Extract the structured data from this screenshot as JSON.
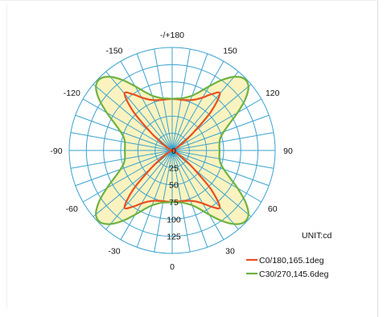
{
  "chart_data": {
    "type": "polar",
    "unit_label": "UNIT:cd",
    "angle_labels": [
      {
        "text": "-/+180",
        "angle": 180
      },
      {
        "text": "150",
        "angle": 150
      },
      {
        "text": "-150",
        "angle": -150
      },
      {
        "text": "120",
        "angle": 120
      },
      {
        "text": "-120",
        "angle": -120
      },
      {
        "text": "90",
        "angle": 90
      },
      {
        "text": "-90",
        "angle": -90
      },
      {
        "text": "60",
        "angle": 60
      },
      {
        "text": "-60",
        "angle": -60
      },
      {
        "text": "30",
        "angle": 30
      },
      {
        "text": "-30",
        "angle": -30
      },
      {
        "text": "0",
        "angle": 0
      }
    ],
    "radial_labels": [
      "0",
      "25",
      "50",
      "75",
      "100",
      "125"
    ],
    "radial_max": 150,
    "series": [
      {
        "name": "C0/180,165.1deg",
        "color": "#e8501f",
        "angles": [
          0,
          5,
          10,
          15,
          20,
          25,
          30,
          35,
          40,
          45,
          50,
          55,
          60,
          65,
          70,
          80,
          90,
          100,
          110,
          115,
          120,
          125,
          130,
          135,
          140,
          145,
          150,
          155,
          160,
          165,
          170,
          175,
          180
        ],
        "values": [
          75,
          75,
          75,
          76,
          78,
          82,
          89,
          100,
          108,
          80,
          40,
          18,
          8,
          4,
          2,
          0,
          0,
          0,
          2,
          4,
          8,
          18,
          40,
          80,
          108,
          100,
          89,
          82,
          78,
          76,
          75,
          75,
          75
        ]
      },
      {
        "name": "C30/270,145.6deg",
        "color": "#6db33f",
        "angles": [
          0,
          5,
          10,
          15,
          20,
          25,
          30,
          35,
          40,
          45,
          50,
          55,
          60,
          65,
          70,
          75,
          80,
          85,
          90,
          95,
          100,
          105,
          110,
          115,
          120,
          125,
          130,
          135,
          140,
          145,
          150,
          155,
          160,
          165,
          170,
          175,
          180
        ],
        "values": [
          75,
          76,
          77,
          80,
          85,
          94,
          108,
          125,
          140,
          148,
          145,
          130,
          110,
          92,
          80,
          73,
          70,
          69,
          69,
          69,
          70,
          73,
          80,
          92,
          110,
          130,
          145,
          148,
          140,
          125,
          108,
          94,
          85,
          80,
          77,
          76,
          75
        ]
      }
    ],
    "fill_color": "#fbf3bf",
    "grid_color": "#3ba3cf"
  }
}
